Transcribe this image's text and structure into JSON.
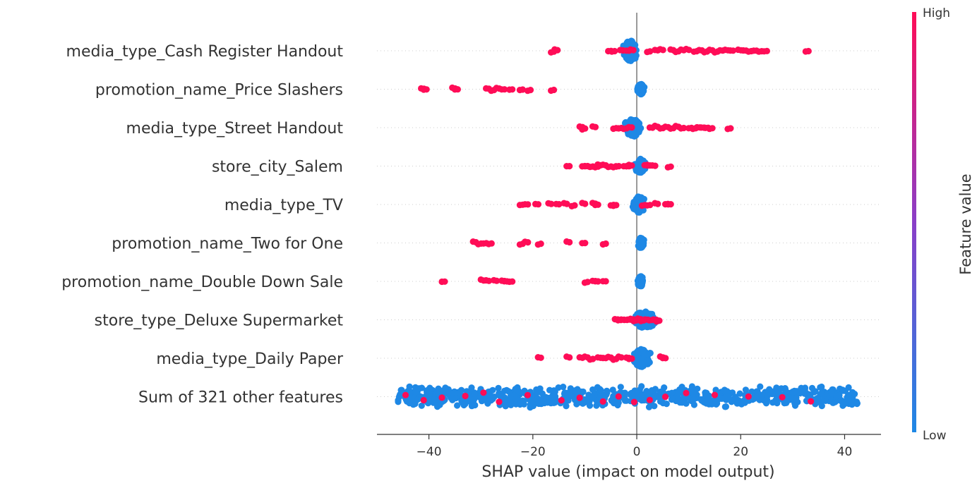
{
  "chart_data": {
    "type": "scatter",
    "subtype": "shap-beeswarm",
    "title": "",
    "xlabel": "SHAP value (impact on model output)",
    "ylabel": "",
    "xlim": [
      -50,
      47
    ],
    "xticks": [
      -40,
      -20,
      0,
      20,
      40
    ],
    "xtick_labels": [
      "−40",
      "−20",
      "0",
      "20",
      "40"
    ],
    "grid": false,
    "zero_line": 0,
    "colors": {
      "high": "#ff0d57",
      "low": "#1e88e5",
      "zero_line": "#999999",
      "row_guide": "#cccccc"
    },
    "colorbar": {
      "title": "Feature value",
      "high_label": "High",
      "low_label": "Low",
      "position": "right"
    },
    "features": [
      {
        "name": "media_type_Cash Register Handout",
        "high_points": [
          -16.5,
          -15.8,
          -5.5,
          -4.8,
          -3.2,
          -2.0,
          -1.2,
          2.0,
          3.5,
          4.5,
          6.5,
          7.5,
          8.5,
          9.5,
          11.0,
          12.0,
          13.0,
          14.0,
          15.0,
          16.0,
          17.0,
          18.0,
          19.5,
          20.5,
          21.5,
          22.5,
          23.5,
          24.5,
          32.5
        ],
        "low_cluster": [
          -3,
          0.5
        ],
        "low_width": 1.0
      },
      {
        "name": "promotion_name_Price Slashers",
        "high_points": [
          -41.5,
          -41.0,
          -35.5,
          -35.0,
          -29.0,
          -28.0,
          -27.0,
          -26.0,
          -24.5,
          -22.5,
          -21.0,
          -16.5
        ],
        "low_cluster": [
          0,
          1.6
        ],
        "low_width": 0.5
      },
      {
        "name": "media_type_Street Handout",
        "high_points": [
          -11.0,
          -10.5,
          -8.5,
          -4.5,
          -3.5,
          -2.5,
          -1.5,
          2.5,
          3.5,
          4.5,
          5.5,
          6.5,
          7.5,
          8.5,
          10.0,
          10.8,
          11.6,
          12.4,
          13.2,
          14.0,
          17.5
        ],
        "low_cluster": [
          -2.5,
          1.2
        ],
        "low_width": 0.9
      },
      {
        "name": "store_city_Salem",
        "high_points": [
          -13.5,
          -10.5,
          -10.0,
          -9.0,
          -8.0,
          -7.5,
          -6.5,
          -5.5,
          -4.5,
          -4.0,
          -2.5,
          -2.0,
          -1.5,
          1.5,
          2.0,
          3.0,
          6.0
        ],
        "low_cluster": [
          -0.5,
          1.8
        ],
        "low_width": 0.7
      },
      {
        "name": "media_type_TV",
        "high_points": [
          -22.5,
          -21.5,
          -19.5,
          -17.0,
          -15.5,
          -14.0,
          -12.5,
          -10.5,
          -8.5,
          -8.0,
          -5.0,
          -4.5,
          1.0,
          2.0,
          3.5,
          5.5,
          6.0
        ],
        "low_cluster": [
          -1.0,
          1.8
        ],
        "low_width": 0.8
      },
      {
        "name": "promotion_name_Two for One",
        "high_points": [
          -31.5,
          -30.5,
          -29.5,
          -28.5,
          -22.5,
          -21.5,
          -19.0,
          -13.5,
          -10.5,
          -6.5
        ],
        "low_cluster": [
          0,
          1.5
        ],
        "low_width": 0.5
      },
      {
        "name": "promotion_name_Double Down Sale",
        "high_points": [
          -37.5,
          -30.0,
          -29.0,
          -27.5,
          -26.0,
          -25.5,
          -24.5,
          -10.0,
          -8.5,
          -8.0,
          -6.5
        ],
        "low_cluster": [
          0,
          1.5
        ],
        "low_width": 0.5
      },
      {
        "name": "store_type_Deluxe Supermarket",
        "high_points": [
          -4.2,
          -3.6,
          -3.0,
          -2.4,
          -1.8,
          -1.2,
          -0.6,
          0.2,
          0.8,
          1.6,
          2.4,
          3.2,
          3.8
        ],
        "low_cluster": [
          -1.5,
          4.5
        ],
        "low_width": 0.8
      },
      {
        "name": "media_type_Daily Paper",
        "high_points": [
          -19.0,
          -13.5,
          -11.0,
          -10.0,
          -9.0,
          -7.5,
          -6.5,
          -5.5,
          -4.5,
          -3.5,
          -2.0,
          -1.5,
          4.5,
          5.0
        ],
        "low_cluster": [
          -1.0,
          3.0
        ],
        "low_width": 0.9
      },
      {
        "name": "Sum of 321 other features",
        "high_points": [
          -44.5,
          -41.0,
          -37.5,
          -33.0,
          -29.5,
          -26.5,
          -21.0,
          -14.5,
          -11.0,
          -6.5,
          -3.5,
          -0.5,
          2.5,
          5.5,
          9.5,
          15.0,
          21.5,
          28.0,
          33.5
        ],
        "low_cluster": [
          -46,
          42.5
        ],
        "low_width": 1.2
      }
    ]
  }
}
